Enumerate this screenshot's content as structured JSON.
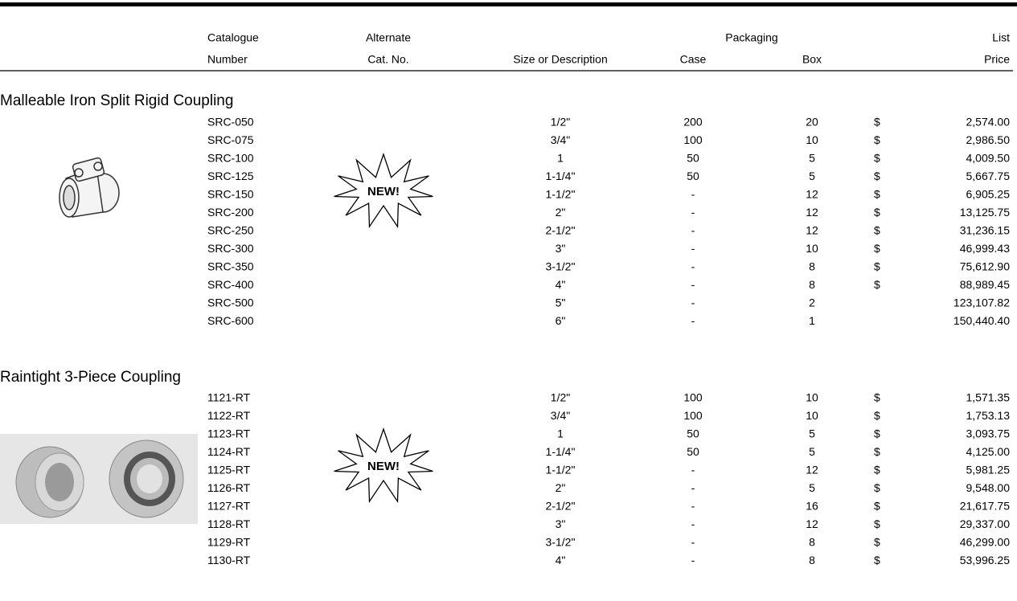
{
  "header": {
    "catalogue": [
      "Catalogue",
      "Number"
    ],
    "alternate": [
      "Alternate",
      "Cat. No."
    ],
    "size": "Size or Description",
    "packaging": "Packaging",
    "case": "Case",
    "box": "Box",
    "price": [
      "List",
      "Price"
    ]
  },
  "sections": [
    {
      "title": "Malleable Iron Split Rigid Coupling",
      "badge": "NEW!",
      "rows": [
        {
          "cat": "SRC-050",
          "size": "1/2\"",
          "case": "200",
          "box": "20",
          "currency": "$",
          "price": "2,574.00"
        },
        {
          "cat": "SRC-075",
          "size": "3/4\"",
          "case": "100",
          "box": "10",
          "currency": "$",
          "price": "2,986.50"
        },
        {
          "cat": "SRC-100",
          "size": "1",
          "case": "50",
          "box": "5",
          "currency": "$",
          "price": "4,009.50"
        },
        {
          "cat": "SRC-125",
          "size": "1-1/4\"",
          "case": "50",
          "box": "5",
          "currency": "$",
          "price": "5,667.75"
        },
        {
          "cat": "SRC-150",
          "size": "1-1/2\"",
          "case": "-",
          "box": "12",
          "currency": "$",
          "price": "6,905.25"
        },
        {
          "cat": "SRC-200",
          "size": "2\"",
          "case": "-",
          "box": "12",
          "currency": "$",
          "price": "13,125.75"
        },
        {
          "cat": "SRC-250",
          "size": "2-1/2\"",
          "case": "-",
          "box": "12",
          "currency": "$",
          "price": "31,236.15"
        },
        {
          "cat": "SRC-300",
          "size": "3\"",
          "case": "-",
          "box": "10",
          "currency": "$",
          "price": "46,999.43"
        },
        {
          "cat": "SRC-350",
          "size": "3-1/2\"",
          "case": "-",
          "box": "8",
          "currency": "$",
          "price": "75,612.90"
        },
        {
          "cat": "SRC-400",
          "size": "4\"",
          "case": "-",
          "box": "8",
          "currency": "$",
          "price": "88,989.45"
        },
        {
          "cat": "SRC-500",
          "size": "5\"",
          "case": "-",
          "box": "2",
          "price": "123,107.82"
        },
        {
          "cat": "SRC-600",
          "size": "6\"",
          "case": "-",
          "box": "1",
          "price": "150,440.40"
        }
      ]
    },
    {
      "title": "Raintight 3-Piece Coupling",
      "badge": "NEW!",
      "rows": [
        {
          "cat": "1121-RT",
          "size": "1/2\"",
          "case": "100",
          "box": "10",
          "currency": "$",
          "price": "1,571.35"
        },
        {
          "cat": "1122-RT",
          "size": "3/4\"",
          "case": "100",
          "box": "10",
          "currency": "$",
          "price": "1,753.13"
        },
        {
          "cat": "1123-RT",
          "size": "1",
          "case": "50",
          "box": "5",
          "currency": "$",
          "price": "3,093.75"
        },
        {
          "cat": "1124-RT",
          "size": "1-1/4\"",
          "case": "50",
          "box": "5",
          "currency": "$",
          "price": "4,125.00"
        },
        {
          "cat": "1125-RT",
          "size": "1-1/2\"",
          "case": "-",
          "box": "12",
          "currency": "$",
          "price": "5,981.25"
        },
        {
          "cat": "1126-RT",
          "size": "2\"",
          "case": "-",
          "box": "5",
          "currency": "$",
          "price": "9,548.00"
        },
        {
          "cat": "1127-RT",
          "size": "2-1/2\"",
          "case": "-",
          "box": "16",
          "currency": "$",
          "price": "21,617.75"
        },
        {
          "cat": "1128-RT",
          "size": "3\"",
          "case": "-",
          "box": "12",
          "currency": "$",
          "price": "29,337.00"
        },
        {
          "cat": "1129-RT",
          "size": "3-1/2\"",
          "case": "-",
          "box": "8",
          "currency": "$",
          "price": "46,299.00"
        },
        {
          "cat": "1130-RT",
          "size": "4\"",
          "case": "-",
          "box": "8",
          "currency": "$",
          "price": "53,996.25"
        }
      ]
    }
  ]
}
